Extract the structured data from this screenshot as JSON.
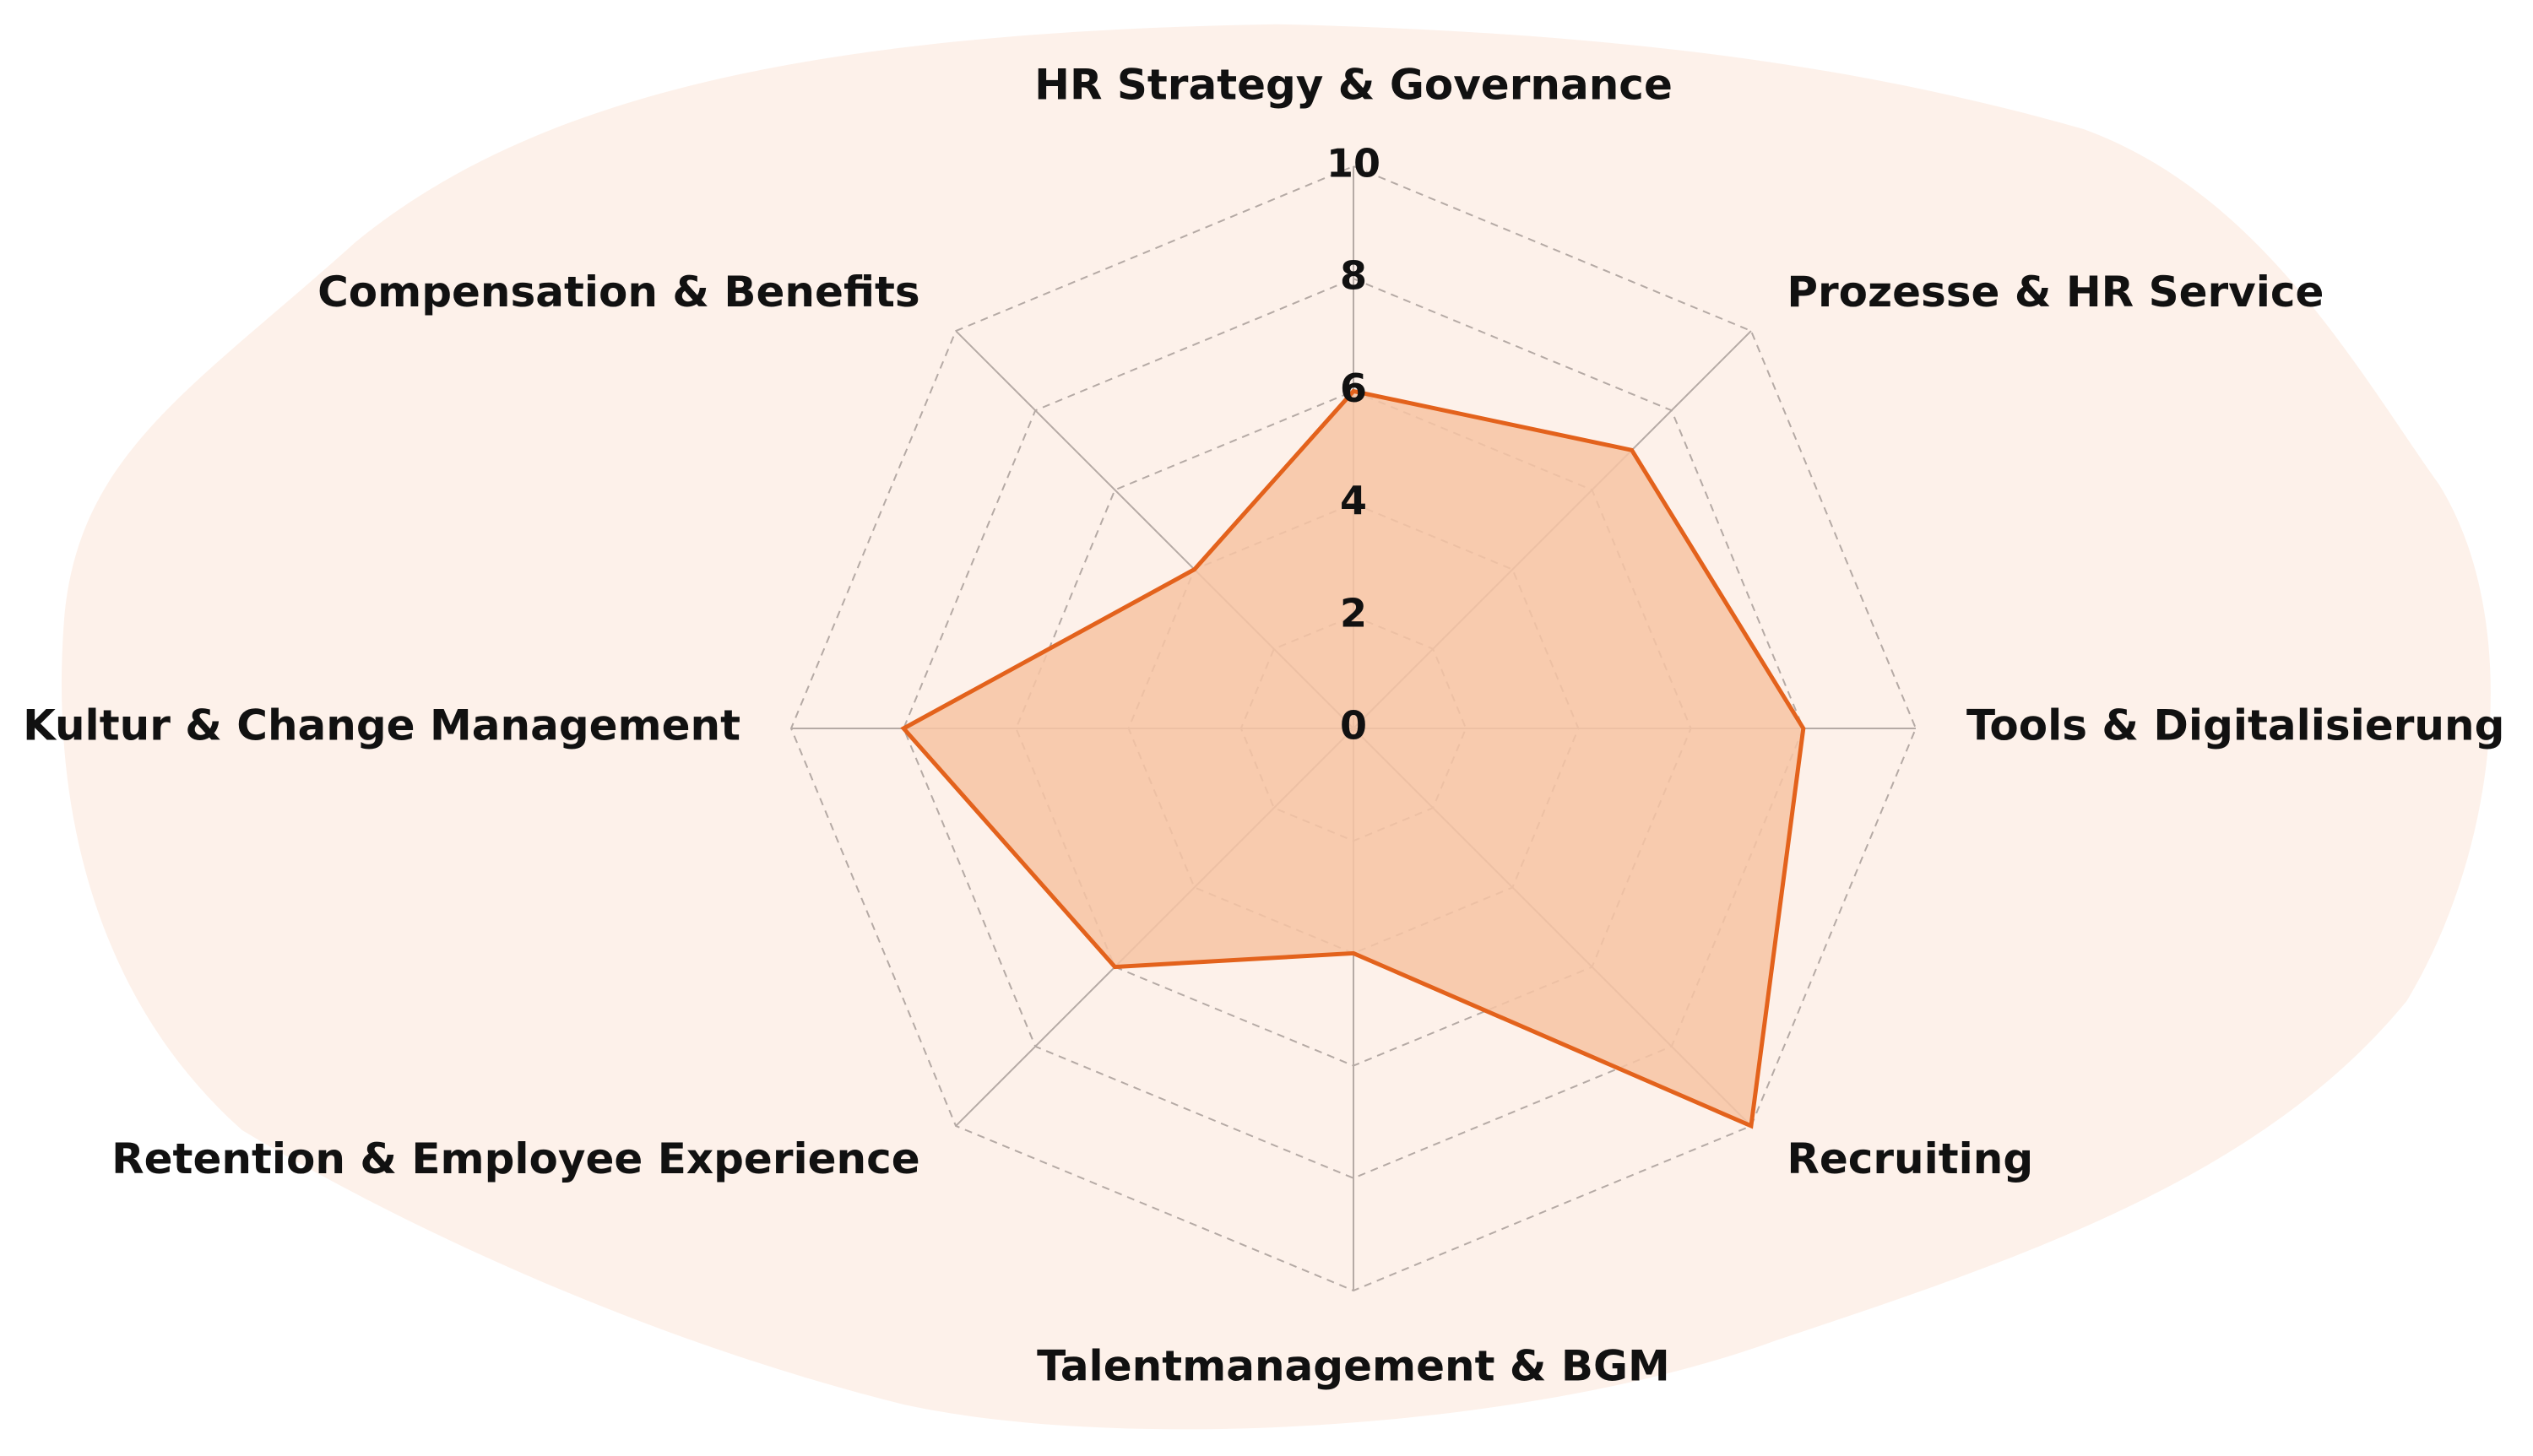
{
  "chart_data": {
    "type": "radar",
    "categories": [
      "HR Strategy & Governance",
      "Prozesse & HR Service",
      "Tools & Digitalisierung",
      "Recruiting",
      "Talentmanagement & BGM",
      "Retention & Employee Experience",
      "Kultur & Change Management",
      "Compensation & Benefits"
    ],
    "values": [
      6,
      7,
      8,
      10,
      4,
      6,
      8,
      4
    ],
    "ylim": [
      0,
      10
    ],
    "yticks": [
      0,
      2,
      4,
      6,
      8,
      10
    ],
    "color": "#e3621c",
    "fill": "#f7c4a3",
    "background": "#fdf1ea",
    "grid": true
  }
}
